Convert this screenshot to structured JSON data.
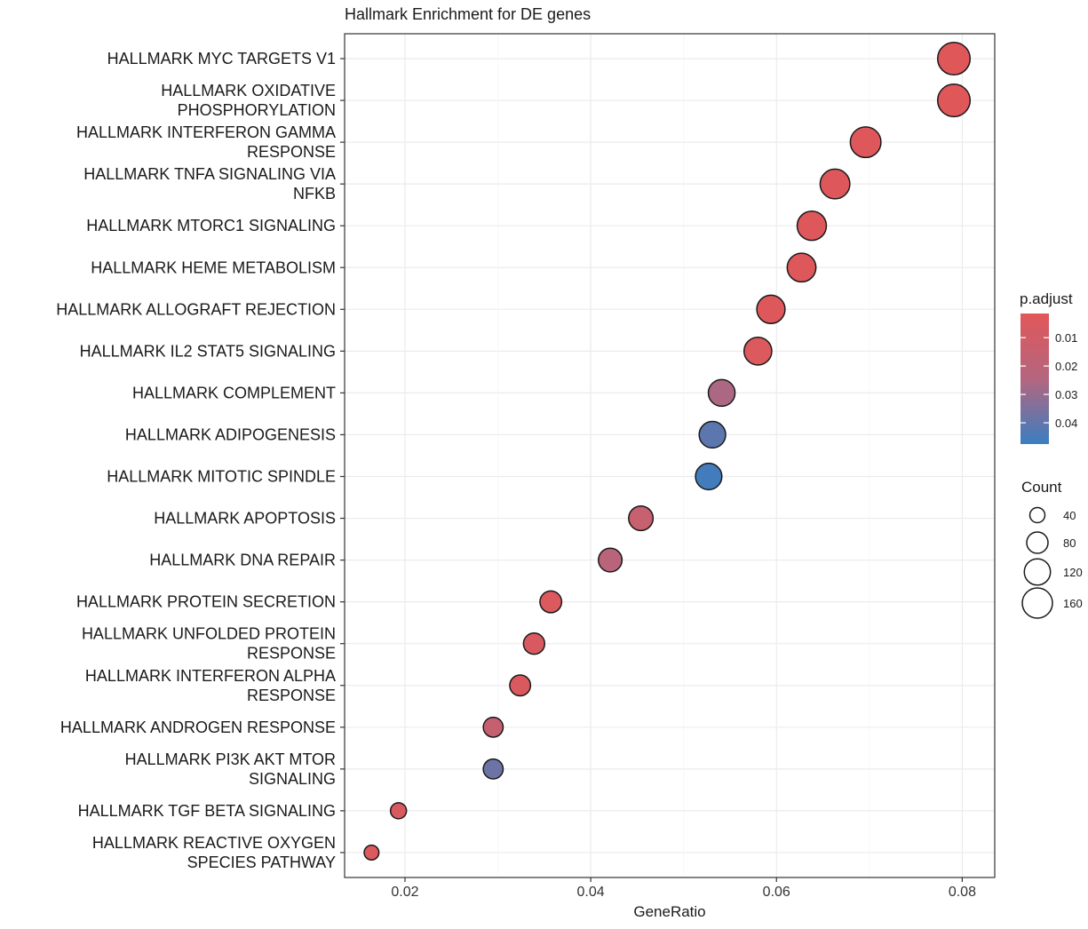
{
  "chart_data": {
    "type": "scatter",
    "title": "Hallmark Enrichment for DE genes",
    "xlabel": "GeneRatio",
    "ylabel": "",
    "xlim": [
      0.0135,
      0.0835
    ],
    "xticks": [
      0.02,
      0.04,
      0.06,
      0.08
    ],
    "xtick_labels": [
      "0.02",
      "0.04",
      "0.06",
      "0.08"
    ],
    "grid": true,
    "categories": [
      [
        "HALLMARK MYC TARGETS V1"
      ],
      [
        "HALLMARK OXIDATIVE",
        "PHOSPHORYLATION"
      ],
      [
        "HALLMARK INTERFERON GAMMA",
        "RESPONSE"
      ],
      [
        "HALLMARK TNFA SIGNALING VIA",
        "NFKB"
      ],
      [
        "HALLMARK MTORC1 SIGNALING"
      ],
      [
        "HALLMARK HEME METABOLISM"
      ],
      [
        "HALLMARK ALLOGRAFT REJECTION"
      ],
      [
        "HALLMARK IL2 STAT5 SIGNALING"
      ],
      [
        "HALLMARK COMPLEMENT"
      ],
      [
        "HALLMARK ADIPOGENESIS"
      ],
      [
        "HALLMARK MITOTIC SPINDLE"
      ],
      [
        "HALLMARK APOPTOSIS"
      ],
      [
        "HALLMARK DNA REPAIR"
      ],
      [
        "HALLMARK PROTEIN SECRETION"
      ],
      [
        "HALLMARK UNFOLDED PROTEIN",
        "RESPONSE"
      ],
      [
        "HALLMARK INTERFERON ALPHA",
        "RESPONSE"
      ],
      [
        "HALLMARK ANDROGEN RESPONSE"
      ],
      [
        "HALLMARK PI3K AKT MTOR",
        "SIGNALING"
      ],
      [
        "HALLMARK TGF BETA SIGNALING"
      ],
      [
        "HALLMARK REACTIVE OXYGEN",
        "SPECIES PATHWAY"
      ]
    ],
    "gene_ratio": [
      0.0791,
      0.0791,
      0.0696,
      0.0663,
      0.0638,
      0.0627,
      0.0594,
      0.058,
      0.0541,
      0.0531,
      0.0527,
      0.0454,
      0.0421,
      0.0357,
      0.0339,
      0.0324,
      0.0295,
      0.0295,
      0.0193,
      0.0164
    ],
    "count": [
      185,
      185,
      165,
      155,
      150,
      145,
      140,
      135,
      125,
      123,
      122,
      105,
      98,
      83,
      79,
      76,
      69,
      69,
      45,
      38
    ],
    "p_adjust": [
      0.002,
      0.002,
      0.003,
      0.003,
      0.003,
      0.003,
      0.003,
      0.004,
      0.026,
      0.041,
      0.046,
      0.015,
      0.022,
      0.004,
      0.006,
      0.005,
      0.016,
      0.038,
      0.006,
      0.004
    ],
    "legend": {
      "color": {
        "title": "p.adjust",
        "ticks": [
          0.01,
          0.02,
          0.03,
          0.04
        ],
        "tick_labels": [
          "0.01",
          "0.02",
          "0.03",
          "0.04"
        ],
        "range": [
          0.0015,
          0.0475
        ],
        "low_color": "#E15759",
        "mid_color": "#B4667F",
        "high_color": "#3A7EC1"
      },
      "size": {
        "title": "Count",
        "values": [
          40,
          80,
          120,
          160
        ],
        "labels": [
          "40",
          "80",
          "120",
          "160"
        ]
      },
      "placement": "right"
    }
  }
}
